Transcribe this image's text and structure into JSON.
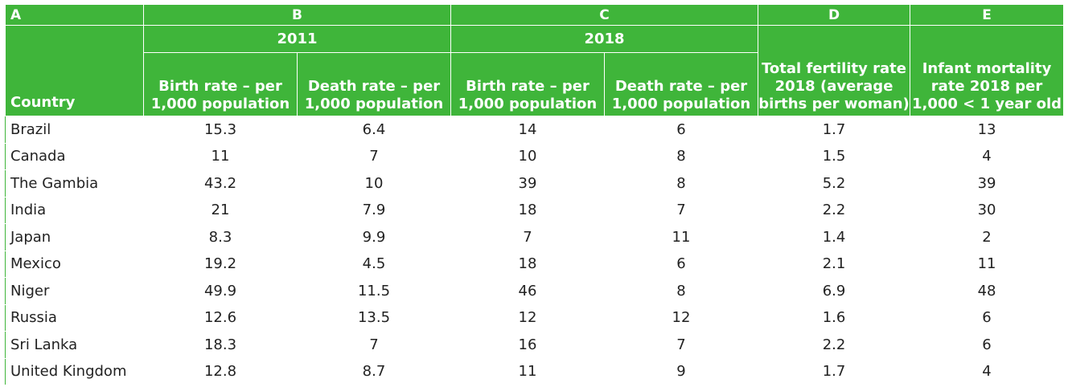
{
  "header": {
    "letters": [
      "A",
      "B",
      "C",
      "D",
      "E"
    ],
    "year_2011": "2011",
    "year_2018": "2018",
    "country": "Country",
    "birth_rate_2011": "Birth rate – per 1,000 population",
    "death_rate_2011": "Death rate – per 1,000 population",
    "birth_rate_2018": "Birth rate – per 1,000 population",
    "death_rate_2018": "Death rate – per 1,000 population",
    "fertility": "Total fertility rate 2018 (average births per woman)",
    "infant_mortality": "Infant mortality rate 2018 per 1,000 < 1 year old"
  },
  "rows": [
    {
      "country": "Brazil",
      "b2011": "15.3",
      "d2011": "6.4",
      "b2018": "14",
      "d2018": "6",
      "tfr": "1.7",
      "imr": "13"
    },
    {
      "country": "Canada",
      "b2011": "11",
      "d2011": "7",
      "b2018": "10",
      "d2018": "8",
      "tfr": "1.5",
      "imr": "4"
    },
    {
      "country": "The Gambia",
      "b2011": "43.2",
      "d2011": "10",
      "b2018": "39",
      "d2018": "8",
      "tfr": "5.2",
      "imr": "39"
    },
    {
      "country": "India",
      "b2011": "21",
      "d2011": "7.9",
      "b2018": "18",
      "d2018": "7",
      "tfr": "2.2",
      "imr": "30"
    },
    {
      "country": "Japan",
      "b2011": "8.3",
      "d2011": "9.9",
      "b2018": "7",
      "d2018": "11",
      "tfr": "1.4",
      "imr": "2"
    },
    {
      "country": "Mexico",
      "b2011": "19.2",
      "d2011": "4.5",
      "b2018": "18",
      "d2018": "6",
      "tfr": "2.1",
      "imr": "11"
    },
    {
      "country": "Niger",
      "b2011": "49.9",
      "d2011": "11.5",
      "b2018": "46",
      "d2018": "8",
      "tfr": "6.9",
      "imr": "48"
    },
    {
      "country": "Russia",
      "b2011": "12.6",
      "d2011": "13.5",
      "b2018": "12",
      "d2018": "12",
      "tfr": "1.6",
      "imr": "6"
    },
    {
      "country": "Sri Lanka",
      "b2011": "18.3",
      "d2011": "7",
      "b2018": "16",
      "d2018": "7",
      "tfr": "2.2",
      "imr": "6"
    },
    {
      "country": "United Kingdom",
      "b2011": "12.8",
      "d2011": "8.7",
      "b2018": "11",
      "d2018": "9",
      "tfr": "1.7",
      "imr": "4"
    }
  ],
  "colors": {
    "header_bg": "#3fb53a",
    "header_text": "#ffffff",
    "grid": "#3fb53a",
    "body_text": "#222222"
  }
}
